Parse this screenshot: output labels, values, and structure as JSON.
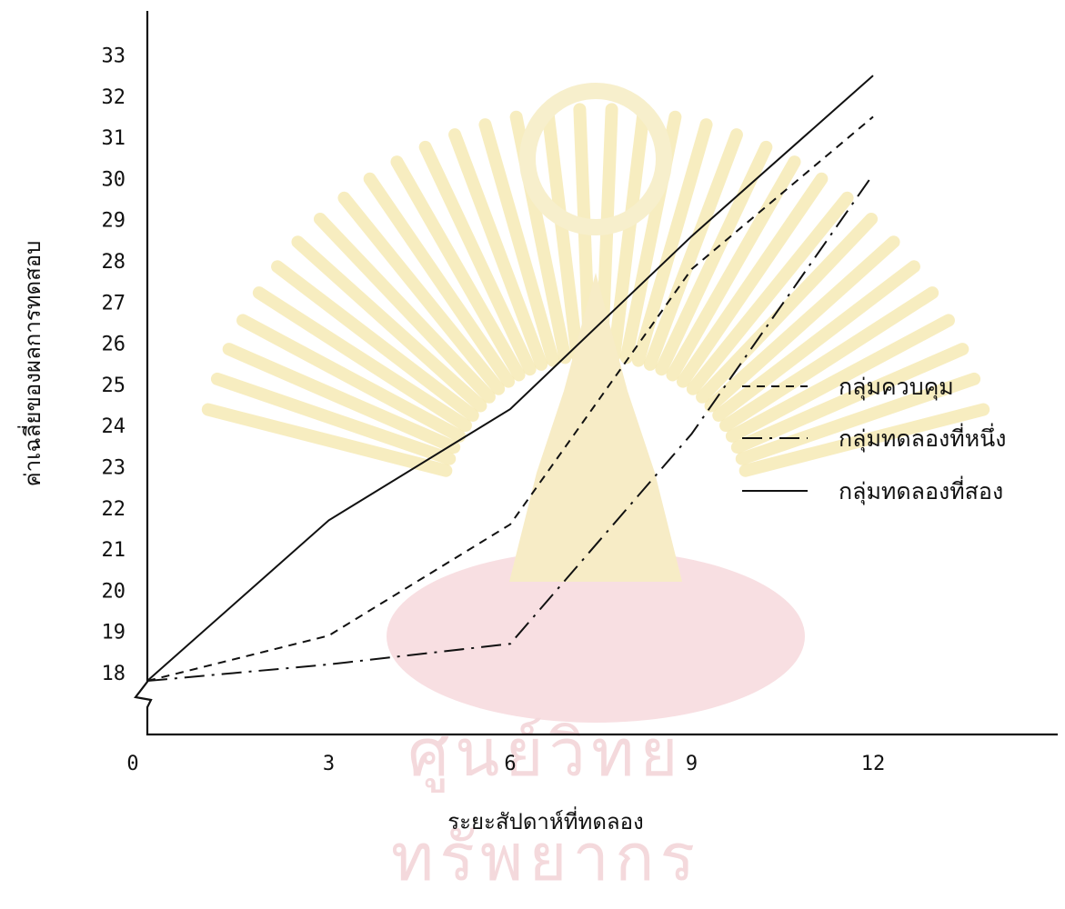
{
  "chart_data": {
    "type": "line",
    "xlabel": "ระยะสัปดาห์ที่ทดลอง",
    "ylabel": "ค่าเฉลี่ยของผลการทดสอบ",
    "x_ticks": [
      0,
      3,
      6,
      9,
      12
    ],
    "y_ticks": [
      18,
      19,
      20,
      21,
      22,
      23,
      24,
      25,
      26,
      27,
      28,
      29,
      30,
      31,
      32,
      33
    ],
    "xlim": [
      0,
      15
    ],
    "ylim": [
      18,
      33
    ],
    "axis_break": true,
    "grid": false,
    "legend_position": "bottom-right",
    "series": [
      {
        "name": "กลุ่มควบคุม",
        "style": "dashed",
        "x": [
          0,
          3,
          6,
          9,
          12
        ],
        "y": [
          17.8,
          18.9,
          21.6,
          27.8,
          31.5
        ]
      },
      {
        "name": "กลุ่มทดลองที่หนึ่ง",
        "style": "dashdot",
        "x": [
          0,
          3,
          6,
          9,
          12
        ],
        "y": [
          17.8,
          18.2,
          18.7,
          23.8,
          30.1
        ]
      },
      {
        "name": "กลุ่มทดลองที่สอง",
        "style": "solid",
        "x": [
          0,
          3,
          6,
          9,
          12
        ],
        "y": [
          17.8,
          21.7,
          24.4,
          28.6,
          32.5
        ]
      }
    ]
  },
  "watermark": {
    "text": "ศูนย์วิทยทรัพยากร",
    "colors": {
      "rays": "#f5e6a6",
      "base": "#f6d3d6"
    }
  }
}
